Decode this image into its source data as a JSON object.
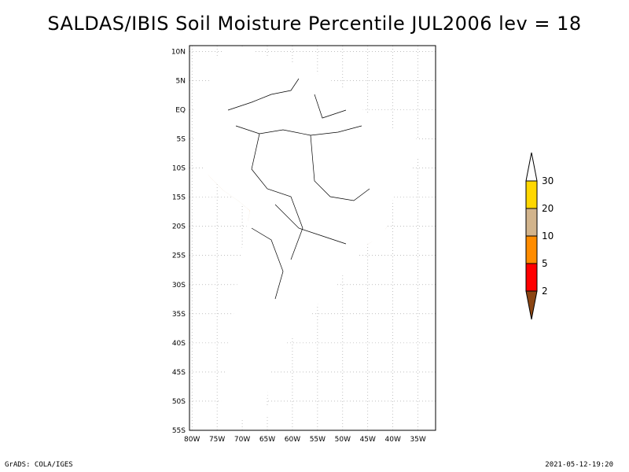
{
  "title": "SALDAS/IBIS Soil Moisture Percentile JUL2006 lev = 18",
  "map": {
    "lon_ticks": [
      "80W",
      "75W",
      "70W",
      "65W",
      "60W",
      "55W",
      "50W",
      "45W",
      "40W",
      "35W"
    ],
    "lat_ticks": [
      "10N",
      "5N",
      "EQ",
      "5S",
      "10S",
      "15S",
      "20S",
      "25S",
      "30S",
      "35S",
      "40S",
      "45S",
      "50S",
      "55S"
    ],
    "lon_range": [
      -80.5,
      -31.5
    ],
    "lat_range": [
      11.0,
      -55.0
    ]
  },
  "legend": {
    "labels": [
      "30",
      "20",
      "10",
      "5",
      "2"
    ],
    "colors": {
      "gt30": "#ffffff",
      "c20_30": "#ffd700",
      "c10_20": "#d2b48c",
      "c5_10": "#ff8c00",
      "c2_5": "#ff0000",
      "lt2": "#8b4513"
    }
  },
  "footer": {
    "left": "GrADS: COLA/IGES",
    "right": "2021-05-12-19:20"
  }
}
